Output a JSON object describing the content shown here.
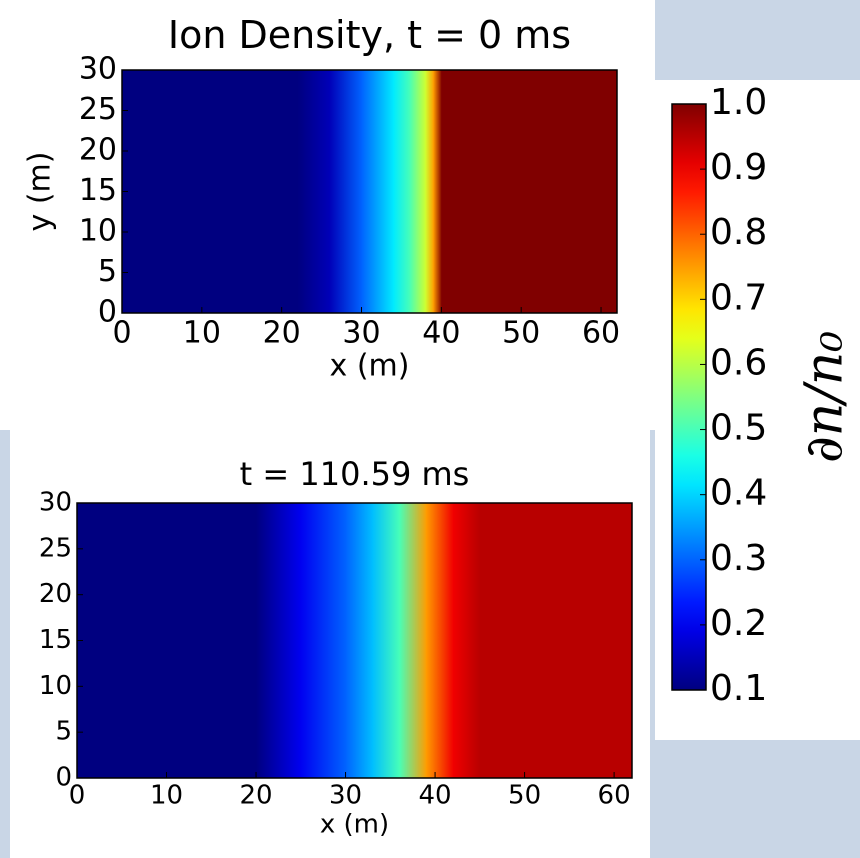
{
  "chart_data": [
    {
      "type": "heatmap",
      "title": "Ion Density, t = 0 ms",
      "xlabel": "x (m)",
      "ylabel": "y (m)",
      "xlim": [
        0,
        62
      ],
      "ylim": [
        0,
        30
      ],
      "xticks": [
        0,
        10,
        20,
        30,
        40,
        50,
        60
      ],
      "yticks": [
        0,
        5,
        10,
        15,
        20,
        25,
        30
      ],
      "x": [
        0,
        22,
        26,
        30,
        34,
        36,
        38,
        39,
        40,
        62
      ],
      "values": [
        0.1,
        0.1,
        0.15,
        0.3,
        0.42,
        0.5,
        0.62,
        0.75,
        1.0,
        1.0
      ]
    },
    {
      "type": "heatmap",
      "title": "t = 110.59 ms",
      "xlabel": "x (m)",
      "xlim": [
        0,
        62
      ],
      "ylim": [
        0,
        30
      ],
      "xticks": [
        0,
        10,
        20,
        30,
        40,
        50,
        60
      ],
      "yticks": [
        0,
        5,
        10,
        15,
        20,
        25,
        30
      ],
      "x": [
        0,
        20,
        25,
        30,
        33,
        36,
        39,
        42,
        45,
        62
      ],
      "values": [
        0.1,
        0.1,
        0.2,
        0.3,
        0.38,
        0.5,
        0.75,
        0.9,
        0.95,
        0.95
      ]
    },
    {
      "type": "colorbar",
      "label": "∂n/n₀",
      "ylim": [
        0.1,
        1.0
      ],
      "yticks": [
        0.1,
        0.2,
        0.3,
        0.4,
        0.5,
        0.6,
        0.7,
        0.8,
        0.9,
        {
          "value": 1.0,
          "label": "1.0"
        }
      ]
    }
  ]
}
